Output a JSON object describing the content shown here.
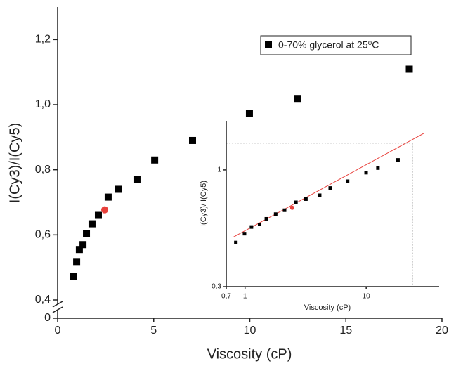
{
  "chart_data": [
    {
      "type": "scatter",
      "x_label": "Viscosity (cP)",
      "y_label": "I(Cy3)/I(Cy5)",
      "xlim": [
        0,
        20
      ],
      "xticks": [
        0,
        5,
        10,
        15,
        20
      ],
      "ylim": [
        0,
        1.3
      ],
      "y_break": [
        0,
        0.4
      ],
      "yticks": [
        0,
        {
          "value": 0.4,
          "label": "0,4"
        },
        {
          "value": 0.6,
          "label": "0,6"
        },
        {
          "value": 0.8,
          "label": "0,8"
        },
        {
          "value": 1.0,
          "label": "1,0"
        },
        {
          "value": 1.2,
          "label": "1,2"
        }
      ],
      "legend": "top-right",
      "series": [
        {
          "name": "0-70% glycerol at 25⁰C",
          "color": "#000000",
          "x": [
            0.84,
            0.99,
            1.13,
            1.32,
            1.5,
            1.79,
            2.12,
            2.63,
            3.18,
            4.13,
            5.05,
            7.02,
            9.98,
            12.5,
            18.3
          ],
          "values": [
            0.473,
            0.518,
            0.555,
            0.57,
            0.604,
            0.634,
            0.66,
            0.716,
            0.74,
            0.77,
            0.83,
            0.89,
            0.972,
            1.019,
            1.109
          ]
        },
        {
          "color": "#e8413c",
          "x": [
            2.45
          ],
          "values": [
            0.677
          ]
        }
      ]
    },
    {
      "type": "scatter",
      "log_x": true,
      "log_y": true,
      "x_label": "Viscosity (cP)",
      "y_label": "I(Cy3)/ I(Cy5)",
      "xlim": [
        0.7,
        40
      ],
      "xticks": [
        {
          "value": 0.7,
          "label": "0,7"
        },
        1,
        10
      ],
      "ylim": [
        0.3,
        1.66
      ],
      "yticks": [
        {
          "value": 0.3,
          "label": "0,3"
        },
        1
      ],
      "series": [
        {
          "color": "#000000",
          "x": [
            0.84,
            0.99,
            1.13,
            1.32,
            1.5,
            1.79,
            2.12,
            2.63,
            3.18,
            4.13,
            5.05,
            7.02,
            9.98,
            12.5,
            18.3
          ],
          "values": [
            0.473,
            0.518,
            0.555,
            0.57,
            0.604,
            0.634,
            0.66,
            0.716,
            0.74,
            0.77,
            0.83,
            0.89,
            0.972,
            1.019,
            1.109
          ]
        },
        {
          "color": "#e8413c",
          "x": [
            2.45
          ],
          "values": [
            0.677
          ]
        }
      ],
      "fit": {
        "color": "#e8413c",
        "x": [
          0.8,
          30
        ],
        "values": [
          0.5,
          1.46
        ]
      },
      "guide": {
        "x": 24,
        "y": 1.32
      }
    }
  ]
}
